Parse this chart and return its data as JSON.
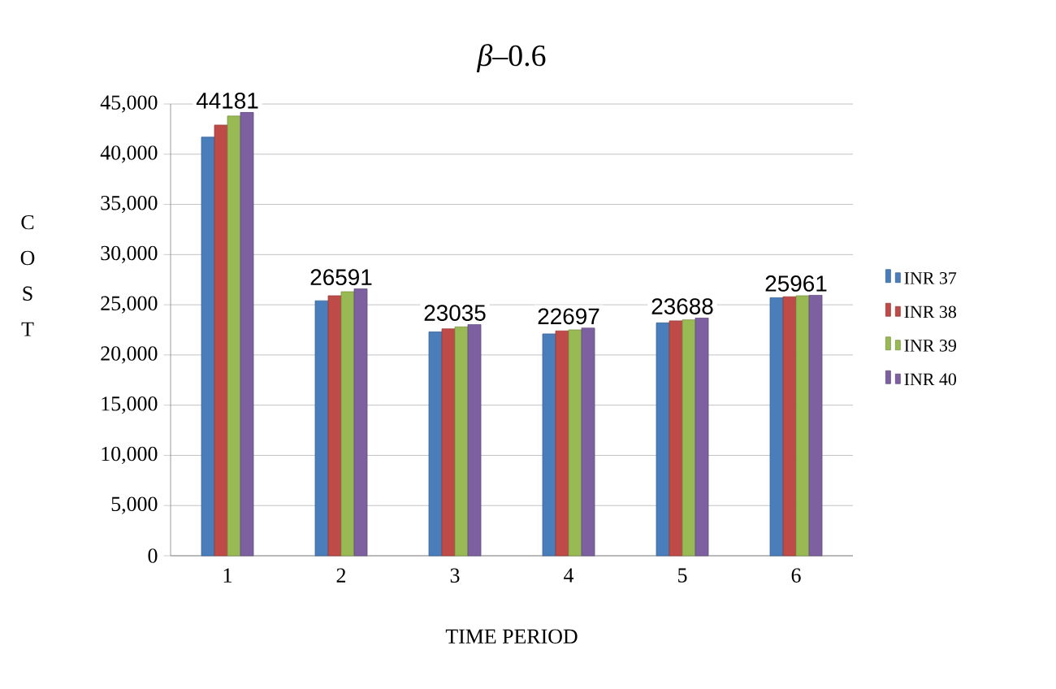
{
  "chart_data": {
    "type": "bar",
    "title": "*β*–0.6",
    "xlabel": "TIME PERIOD",
    "ylabel": "C O S T",
    "categories": [
      "1",
      "2",
      "3",
      "4",
      "5",
      "6"
    ],
    "series": [
      {
        "name": "INR 37",
        "color": "#4a7ebb",
        "values": [
          41700,
          25400,
          22300,
          22100,
          23200,
          25700
        ]
      },
      {
        "name": "INR 38",
        "color": "#be4b48",
        "values": [
          42900,
          25900,
          22600,
          22400,
          23400,
          25800
        ]
      },
      {
        "name": "INR 39",
        "color": "#98b954",
        "values": [
          43800,
          26300,
          22800,
          22500,
          23500,
          25900
        ]
      },
      {
        "name": "INR 40",
        "color": "#7d60a0",
        "values": [
          44181,
          26591,
          23035,
          22697,
          23688,
          25961
        ],
        "value_labels": [
          "44181",
          "26591",
          "23035",
          "22697",
          "23688",
          "25961"
        ]
      }
    ],
    "ylim": [
      0,
      45000
    ],
    "yticks": [
      {
        "value": 0,
        "label": "0"
      },
      {
        "value": 5000,
        "label": "5,000"
      },
      {
        "value": 10000,
        "label": "10,000"
      },
      {
        "value": 15000,
        "label": "15,000"
      },
      {
        "value": 20000,
        "label": "20,000"
      },
      {
        "value": 25000,
        "label": "25,000"
      },
      {
        "value": 30000,
        "label": "30,000"
      },
      {
        "value": 35000,
        "label": "35,000"
      },
      {
        "value": 40000,
        "label": "40,000"
      },
      {
        "value": 45000,
        "label": "45,000"
      }
    ],
    "grid": "y",
    "legend": "right"
  }
}
